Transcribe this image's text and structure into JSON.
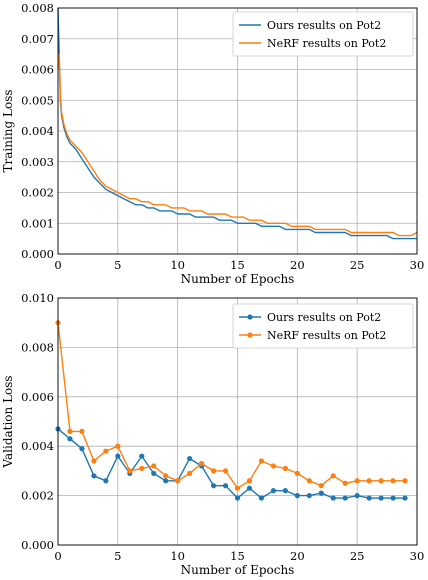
{
  "chart_data": [
    {
      "type": "line",
      "xlabel": "Number of Epochs",
      "ylabel": "Training Loss",
      "xlim": [
        0,
        30
      ],
      "ylim": [
        0,
        0.008
      ],
      "xticks": [
        0,
        5,
        10,
        15,
        20,
        25,
        30
      ],
      "yticks": [
        "0.000",
        "0.001",
        "0.002",
        "0.003",
        "0.004",
        "0.005",
        "0.006",
        "0.007",
        "0.008"
      ],
      "grid": true,
      "legend": "upper-right",
      "series": [
        {
          "name": "Ours results on Pot2",
          "color": "#1f77b4",
          "x": [
            0,
            0.1,
            0.2,
            0.3,
            0.5,
            0.75,
            1,
            1.5,
            2,
            2.5,
            3,
            3.5,
            4,
            4.5,
            5,
            5.5,
            6,
            6.5,
            7,
            7.5,
            8,
            8.5,
            9,
            9.5,
            10,
            10.5,
            11,
            11.5,
            12,
            12.5,
            13,
            13.5,
            14,
            14.5,
            15,
            15.5,
            16,
            16.5,
            17,
            17.5,
            18,
            18.5,
            19,
            19.5,
            20,
            20.5,
            21,
            21.5,
            22,
            22.5,
            23,
            23.5,
            24,
            24.5,
            25,
            25.5,
            26,
            26.5,
            27,
            27.5,
            28,
            28.5,
            29,
            29.5,
            30
          ],
          "y": [
            0.008,
            0.0065,
            0.005,
            0.0045,
            0.0041,
            0.0038,
            0.0036,
            0.0034,
            0.0031,
            0.0028,
            0.0025,
            0.0023,
            0.0021,
            0.002,
            0.0019,
            0.0018,
            0.0017,
            0.0016,
            0.0016,
            0.0015,
            0.0015,
            0.0014,
            0.0014,
            0.0014,
            0.0013,
            0.0013,
            0.0013,
            0.0012,
            0.0012,
            0.0012,
            0.0012,
            0.0011,
            0.0011,
            0.0011,
            0.001,
            0.001,
            0.001,
            0.001,
            0.0009,
            0.0009,
            0.0009,
            0.0009,
            0.0008,
            0.0008,
            0.0008,
            0.0008,
            0.0008,
            0.0007,
            0.0007,
            0.0007,
            0.0007,
            0.0007,
            0.0007,
            0.0006,
            0.0006,
            0.0006,
            0.0006,
            0.0006,
            0.0006,
            0.0006,
            0.0005,
            0.0005,
            0.0005,
            0.0005,
            0.0005
          ]
        },
        {
          "name": "NeRF results on Pot2",
          "color": "#ff7f0e",
          "x": [
            0,
            0.1,
            0.2,
            0.3,
            0.5,
            0.75,
            1,
            1.5,
            2,
            2.5,
            3,
            3.5,
            4,
            4.5,
            5,
            5.5,
            6,
            6.5,
            7,
            7.5,
            8,
            8.5,
            9,
            9.5,
            10,
            10.5,
            11,
            11.5,
            12,
            12.5,
            13,
            13.5,
            14,
            14.5,
            15,
            15.5,
            16,
            16.5,
            17,
            17.5,
            18,
            18.5,
            19,
            19.5,
            20,
            20.5,
            21,
            21.5,
            22,
            22.5,
            23,
            23.5,
            24,
            24.5,
            25,
            25.5,
            26,
            26.5,
            27,
            27.5,
            28,
            28.5,
            29,
            29.5,
            30
          ],
          "y": [
            0.006,
            0.0065,
            0.0052,
            0.0046,
            0.0042,
            0.0039,
            0.0037,
            0.0035,
            0.0033,
            0.003,
            0.0027,
            0.0024,
            0.0022,
            0.0021,
            0.002,
            0.0019,
            0.0018,
            0.0018,
            0.0017,
            0.0017,
            0.0016,
            0.0016,
            0.0016,
            0.0015,
            0.0015,
            0.0015,
            0.0014,
            0.0014,
            0.0014,
            0.0013,
            0.0013,
            0.0013,
            0.0013,
            0.0012,
            0.0012,
            0.0012,
            0.0011,
            0.0011,
            0.0011,
            0.001,
            0.001,
            0.001,
            0.001,
            0.0009,
            0.0009,
            0.0009,
            0.0009,
            0.0008,
            0.0008,
            0.0008,
            0.0008,
            0.0008,
            0.0008,
            0.0007,
            0.0007,
            0.0007,
            0.0007,
            0.0007,
            0.0007,
            0.0007,
            0.0007,
            0.0006,
            0.0006,
            0.0006,
            0.0007
          ]
        }
      ]
    },
    {
      "type": "line",
      "xlabel": "Number of Epochs",
      "ylabel": "Validation Loss",
      "xlim": [
        0,
        30
      ],
      "ylim": [
        0,
        0.01
      ],
      "xticks": [
        0,
        5,
        10,
        15,
        20,
        25,
        30
      ],
      "yticks": [
        "0.000",
        "0.002",
        "0.004",
        "0.006",
        "0.008",
        "0.010"
      ],
      "grid": true,
      "legend": "upper-right",
      "markers": true,
      "series": [
        {
          "name": "Ours results on Pot2",
          "color": "#1f77b4",
          "x": [
            0,
            1,
            2,
            3,
            4,
            5,
            6,
            7,
            8,
            9,
            10,
            11,
            12,
            13,
            14,
            15,
            16,
            17,
            18,
            19,
            20,
            21,
            22,
            23,
            24,
            25,
            26,
            27,
            28,
            29
          ],
          "y": [
            0.0047,
            0.0043,
            0.0039,
            0.0028,
            0.0026,
            0.0036,
            0.0029,
            0.0036,
            0.0029,
            0.0026,
            0.0026,
            0.0035,
            0.0032,
            0.0024,
            0.0024,
            0.0019,
            0.0023,
            0.0019,
            0.0022,
            0.0022,
            0.002,
            0.002,
            0.0021,
            0.0019,
            0.0019,
            0.002,
            0.0019,
            0.0019,
            0.0019,
            0.0019
          ]
        },
        {
          "name": "NeRF results on Pot2",
          "color": "#ff7f0e",
          "x": [
            0,
            1,
            2,
            3,
            4,
            5,
            6,
            7,
            8,
            9,
            10,
            11,
            12,
            13,
            14,
            15,
            16,
            17,
            18,
            19,
            20,
            21,
            22,
            23,
            24,
            25,
            26,
            27,
            28,
            29
          ],
          "y": [
            0.009,
            0.0046,
            0.0046,
            0.0034,
            0.0038,
            0.004,
            0.003,
            0.0031,
            0.0032,
            0.0028,
            0.0026,
            0.0029,
            0.0033,
            0.003,
            0.003,
            0.0023,
            0.0026,
            0.0034,
            0.0032,
            0.0031,
            0.0029,
            0.0026,
            0.0024,
            0.0028,
            0.0025,
            0.0026,
            0.0026,
            0.0026,
            0.0026,
            0.0026
          ]
        }
      ]
    }
  ]
}
